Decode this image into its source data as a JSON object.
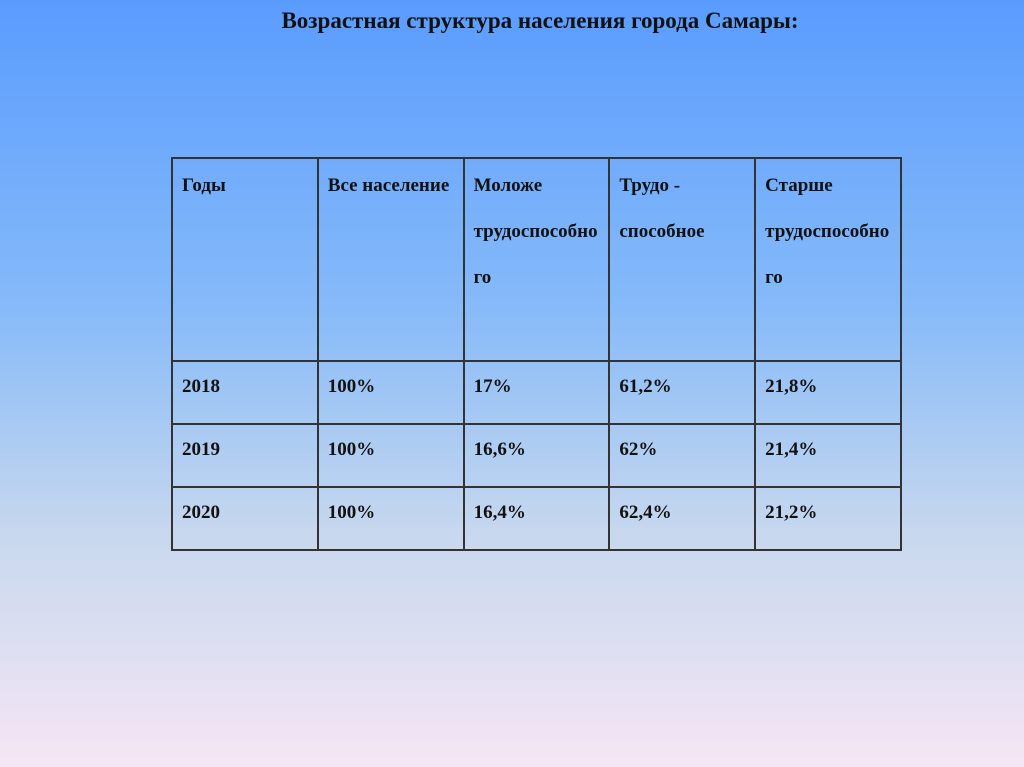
{
  "header": {
    "title": "Возрастная структура населения города Самары:"
  },
  "table": {
    "columns": [
      "Годы",
      "Все население",
      "Моложе трудоспособного",
      "Трудо - способное",
      "Старше трудоспособного"
    ],
    "rows": [
      [
        "2018",
        "100%",
        "17%",
        "61,2%",
        "21,8%"
      ],
      [
        "2019",
        "100%",
        "16,6%",
        "62%",
        "21,4%"
      ],
      [
        "2020",
        "100%",
        "16,4%",
        "62,4%",
        "21,2%"
      ]
    ]
  }
}
